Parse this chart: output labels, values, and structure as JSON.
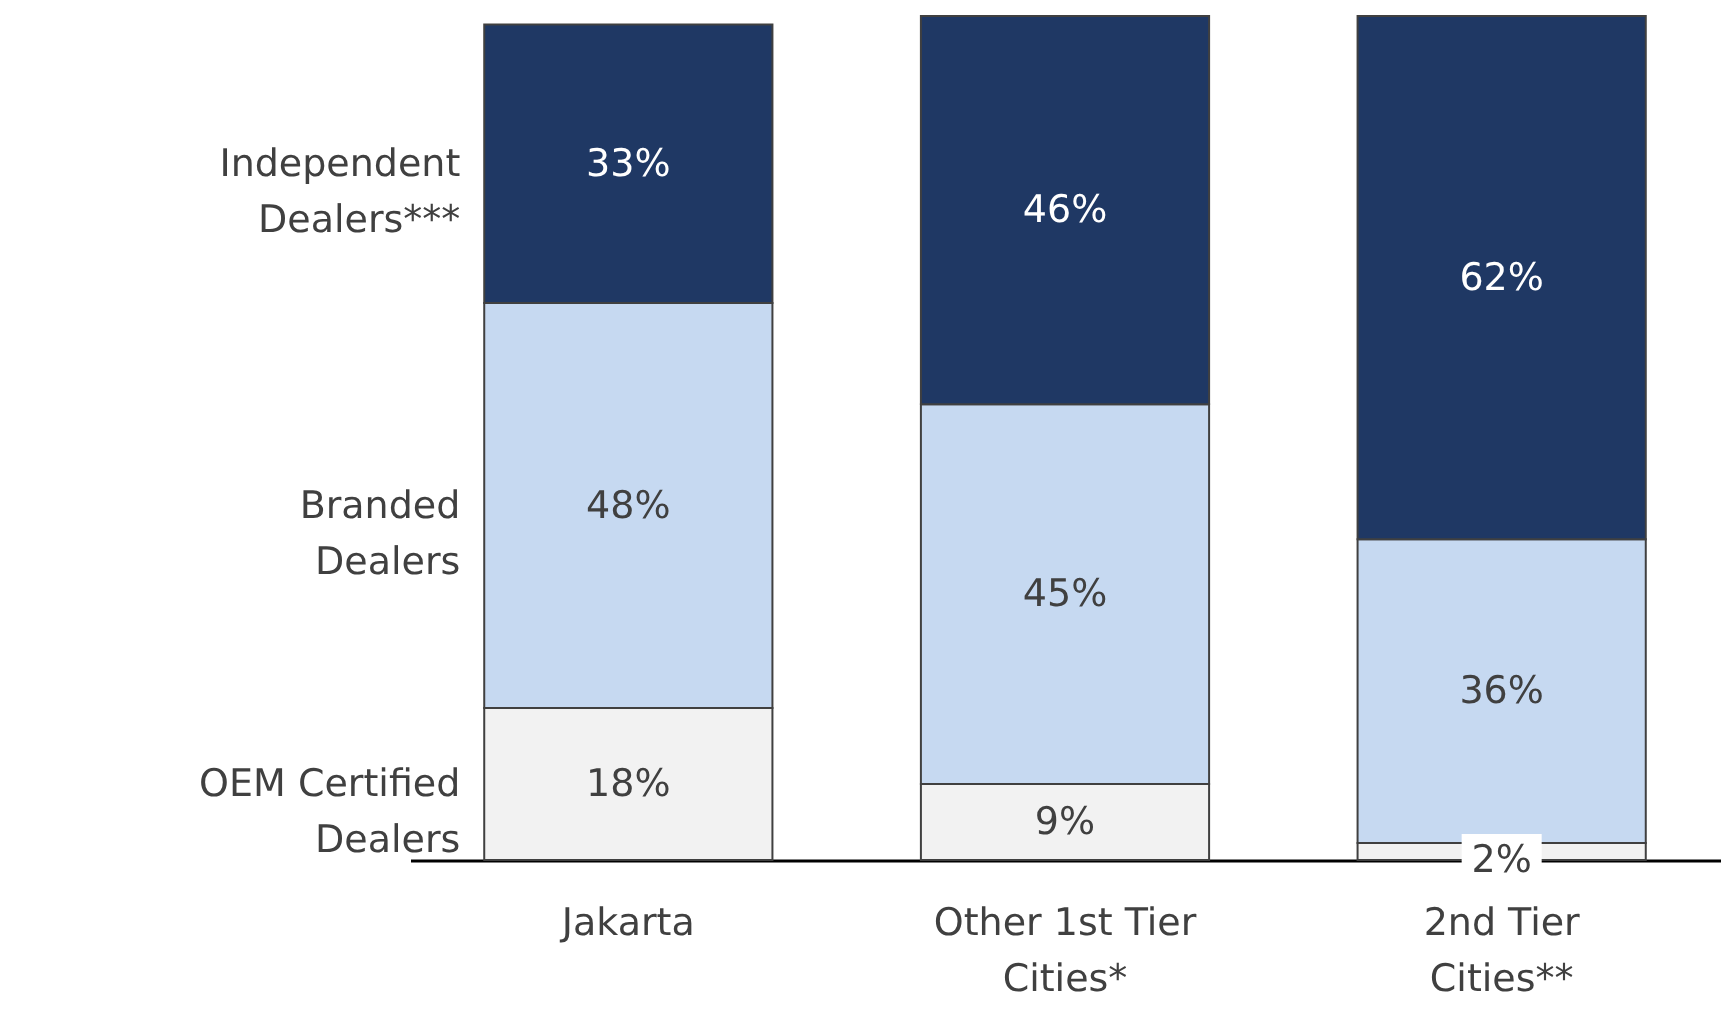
{
  "chart_data": {
    "type": "bar",
    "stacked": true,
    "tick_labels": "x",
    "grid": false,
    "categories": [
      "Jakarta",
      "Other 1st Tier\nCities*",
      "2nd Tier\nCities**"
    ],
    "series": [
      {
        "name": "OEM Certified\nDealers",
        "color": "#f2f2f2",
        "values": [
          18,
          9,
          2
        ],
        "value_labels": [
          "18%",
          "9%",
          "2%"
        ]
      },
      {
        "name": "Branded\nDealers",
        "color": "#c6d9f1",
        "values": [
          48,
          45,
          36
        ],
        "value_labels": [
          "48%",
          "45%",
          "36%"
        ]
      },
      {
        "name": "Independent\nDealers***",
        "color": "#1f3864",
        "values": [
          33,
          46,
          62
        ],
        "value_labels": [
          "33%",
          "46%",
          "62%"
        ]
      }
    ]
  }
}
